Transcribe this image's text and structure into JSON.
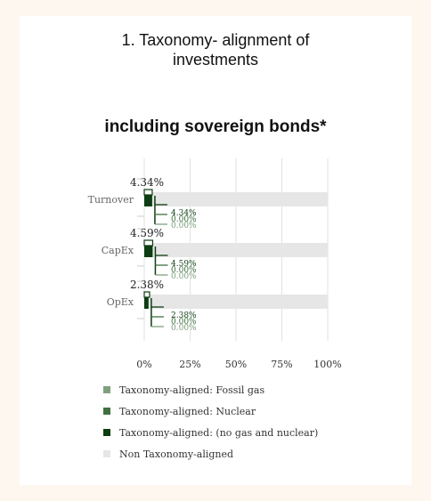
{
  "chart_data": {
    "type": "bar",
    "title": "1. Taxonomy- alignment of\ninvestments",
    "subtitle": "including sovereign bonds*",
    "categories": [
      "Turnover",
      "CapEx",
      "OpEx"
    ],
    "totals_labels": [
      "4.34%",
      "4.59%",
      "2.38%"
    ],
    "series": [
      {
        "name": "Taxonomy-aligned: Fossil gas",
        "values": [
          0.0,
          0.0,
          0.0
        ],
        "color": "#7fa07f"
      },
      {
        "name": "Taxonomy-aligned: Nuclear",
        "values": [
          0.0,
          0.0,
          0.0
        ],
        "color": "#3f7040"
      },
      {
        "name": "Taxonomy-aligned: (no gas and nuclear)",
        "values": [
          4.34,
          4.59,
          2.38
        ],
        "color": "#0d3d12"
      },
      {
        "name": "Non Taxonomy-aligned",
        "values": [
          95.66,
          95.41,
          97.62
        ],
        "color": "#e6e6e6"
      }
    ],
    "detail_labels": [
      [
        "4.34%",
        "0.00%",
        "0.00%"
      ],
      [
        "4.59%",
        "0.00%",
        "0.00%"
      ],
      [
        "2.38%",
        "0.00%",
        "0.00%"
      ]
    ],
    "xlim": [
      0,
      100
    ],
    "x_ticks": [
      "0%",
      "25%",
      "50%",
      "75%",
      "100%"
    ],
    "grid": true,
    "legend": "bottom"
  }
}
